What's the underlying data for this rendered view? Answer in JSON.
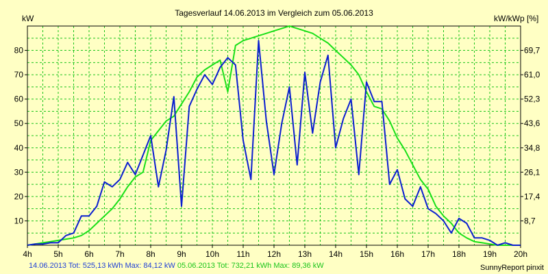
{
  "chart_data": {
    "type": "line",
    "title": "Tagesverlauf 14.06.2013 im Vergleich zum 05.06.2013",
    "ylabel_left": "kW",
    "ylabel_right": "kW/kWp [%]",
    "x_unit": "h",
    "xlim": [
      4,
      20
    ],
    "ylim": [
      0,
      90
    ],
    "x_ticks": [
      "4h",
      "5h",
      "6h",
      "7h",
      "8h",
      "9h",
      "10h",
      "11h",
      "12h",
      "13h",
      "14h",
      "15h",
      "16h",
      "17h",
      "18h",
      "19h",
      "20h"
    ],
    "y_ticks_left": [
      "10",
      "20",
      "30",
      "40",
      "50",
      "60",
      "70",
      "80"
    ],
    "y_ticks_right": [
      "8,7",
      "17,4",
      "26,1",
      "34,8",
      "43,6",
      "52,3",
      "61,0",
      "69,7"
    ],
    "grid": true,
    "series": [
      {
        "name": "14.06.2013",
        "color": "#0a1ed0",
        "x": [
          4.0,
          4.25,
          4.5,
          4.75,
          5.0,
          5.25,
          5.5,
          5.75,
          6.0,
          6.25,
          6.5,
          6.75,
          7.0,
          7.25,
          7.5,
          7.75,
          8.0,
          8.25,
          8.5,
          8.75,
          9.0,
          9.25,
          9.5,
          9.75,
          10.0,
          10.25,
          10.5,
          10.75,
          11.0,
          11.25,
          11.5,
          11.75,
          12.0,
          12.25,
          12.5,
          12.75,
          13.0,
          13.25,
          13.5,
          13.75,
          14.0,
          14.25,
          14.5,
          14.75,
          15.0,
          15.25,
          15.5,
          15.75,
          16.0,
          16.25,
          16.5,
          16.75,
          17.0,
          17.25,
          17.5,
          17.75,
          18.0,
          18.25,
          18.5,
          18.75,
          19.0,
          19.25,
          19.5,
          19.75,
          20.0
        ],
        "y": [
          0,
          0.5,
          0.5,
          1,
          1,
          4,
          5,
          12,
          12,
          16,
          26,
          24,
          27,
          34,
          29,
          37,
          45,
          24,
          39,
          61,
          16,
          57,
          64,
          70,
          66,
          73,
          77,
          74,
          43,
          27,
          84,
          51,
          29,
          50,
          65,
          33,
          71,
          46,
          67,
          78,
          40,
          52,
          60,
          29,
          67,
          59,
          59,
          25,
          31,
          19,
          16,
          24,
          15,
          13,
          10,
          5,
          11,
          9,
          3,
          3,
          2,
          0,
          1,
          0,
          0
        ]
      },
      {
        "name": "05.06.2013",
        "color": "#18e018",
        "x": [
          4.0,
          4.25,
          4.5,
          4.75,
          5.0,
          5.25,
          5.5,
          5.75,
          6.0,
          6.25,
          6.5,
          6.75,
          7.0,
          7.25,
          7.5,
          7.75,
          8.0,
          8.25,
          8.5,
          8.75,
          9.0,
          9.25,
          9.5,
          9.75,
          10.0,
          10.25,
          10.5,
          10.75,
          11.0,
          11.25,
          11.5,
          11.75,
          12.0,
          12.25,
          12.5,
          12.75,
          13.0,
          13.25,
          13.5,
          13.75,
          14.0,
          14.25,
          14.5,
          14.75,
          15.0,
          15.25,
          15.5,
          15.75,
          16.0,
          16.25,
          16.5,
          16.75,
          17.0,
          17.25,
          17.5,
          17.75,
          18.0,
          18.25,
          18.5,
          18.75,
          19.0,
          19.25,
          19.5,
          19.75,
          20.0
        ],
        "y": [
          0,
          0.5,
          1,
          1.5,
          2,
          2.5,
          3,
          4,
          6,
          9,
          12,
          15,
          19,
          24,
          28,
          30,
          43,
          47,
          51,
          53,
          58,
          63,
          69,
          72,
          74,
          76,
          63,
          82,
          84,
          85,
          86,
          87,
          88,
          89,
          90,
          89,
          88,
          87,
          85,
          83,
          80,
          77,
          74,
          70,
          63,
          57,
          56,
          51,
          44,
          39,
          33,
          27,
          23,
          16,
          12,
          9,
          5,
          3,
          1.5,
          1,
          0.5,
          0,
          0,
          0,
          0
        ]
      }
    ]
  },
  "footer": {
    "series_a_label": "14.06.2013 Tot: 525,13 kWh Max: 84,12 kW",
    "series_b_label": "05.06.2013 Tot: 732,21 kWh Max: 89,36 kW",
    "credit": "SunnyReport pinxit"
  },
  "colors": {
    "background": "#ffffc4",
    "grid": "#19c419",
    "series_a": "#0a1ed0",
    "series_b": "#18e018"
  }
}
